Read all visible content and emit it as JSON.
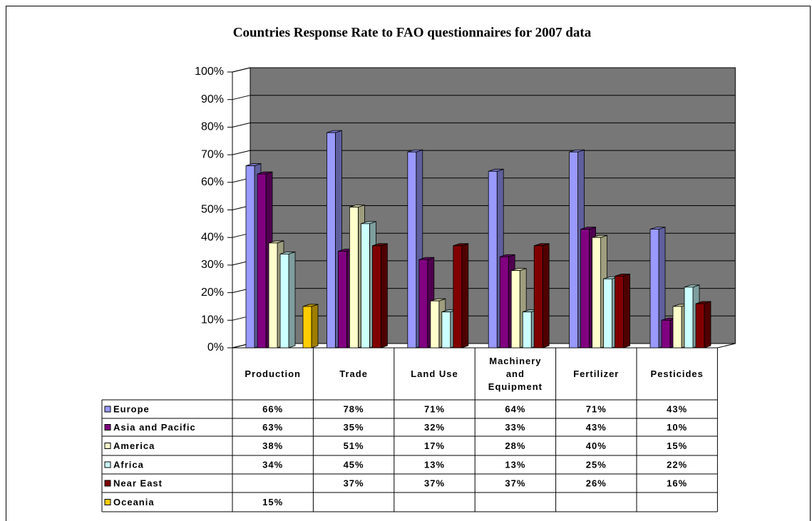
{
  "chart_data": {
    "type": "bar3d",
    "title": "Countries Response Rate to FAO questionnaires for 2007 data",
    "categories": [
      "Production",
      "Trade",
      "Land Use",
      "Machinery and Equipment",
      "Fertilizer",
      "Pesticides"
    ],
    "series": [
      {
        "name": "Europe",
        "color": "#9999ff",
        "values": [
          66,
          78,
          71,
          64,
          71,
          43
        ],
        "value_labels": [
          "66%",
          "78%",
          "71%",
          "64%",
          "71%",
          "43%"
        ]
      },
      {
        "name": "Asia and Pacific",
        "color": "#800080",
        "values": [
          63,
          35,
          32,
          33,
          43,
          10
        ],
        "value_labels": [
          "63%",
          "35%",
          "32%",
          "33%",
          "43%",
          "10%"
        ]
      },
      {
        "name": "America",
        "color": "#ffffcc",
        "values": [
          38,
          51,
          17,
          28,
          40,
          15
        ],
        "value_labels": [
          "38%",
          "51%",
          "17%",
          "28%",
          "40%",
          "15%"
        ]
      },
      {
        "name": "Africa",
        "color": "#ccffff",
        "values": [
          34,
          45,
          13,
          13,
          25,
          22
        ],
        "value_labels": [
          "34%",
          "45%",
          "13%",
          "13%",
          "25%",
          "22%"
        ]
      },
      {
        "name": "Near East",
        "color": "#800000",
        "values": [
          null,
          37,
          37,
          37,
          26,
          16
        ],
        "value_labels": [
          null,
          "37%",
          "37%",
          "37%",
          "26%",
          "16%"
        ]
      },
      {
        "name": "Oceania",
        "color": "#ffcc00",
        "values": [
          15,
          null,
          null,
          null,
          null,
          null
        ],
        "value_labels": [
          "15%",
          null,
          null,
          null,
          null,
          null
        ]
      }
    ],
    "ylim": [
      0,
      100
    ],
    "yticks": [
      {
        "value": 0,
        "label": "0%"
      },
      {
        "value": 10,
        "label": "10%"
      },
      {
        "value": 20,
        "label": "20%"
      },
      {
        "value": 30,
        "label": "30%"
      },
      {
        "value": 40,
        "label": "40%"
      },
      {
        "value": 50,
        "label": "50%"
      },
      {
        "value": 60,
        "label": "60%"
      },
      {
        "value": 70,
        "label": "70%"
      },
      {
        "value": 80,
        "label": "80%"
      },
      {
        "value": 90,
        "label": "90%"
      },
      {
        "value": 100,
        "label": "100%"
      }
    ],
    "grid": true
  }
}
